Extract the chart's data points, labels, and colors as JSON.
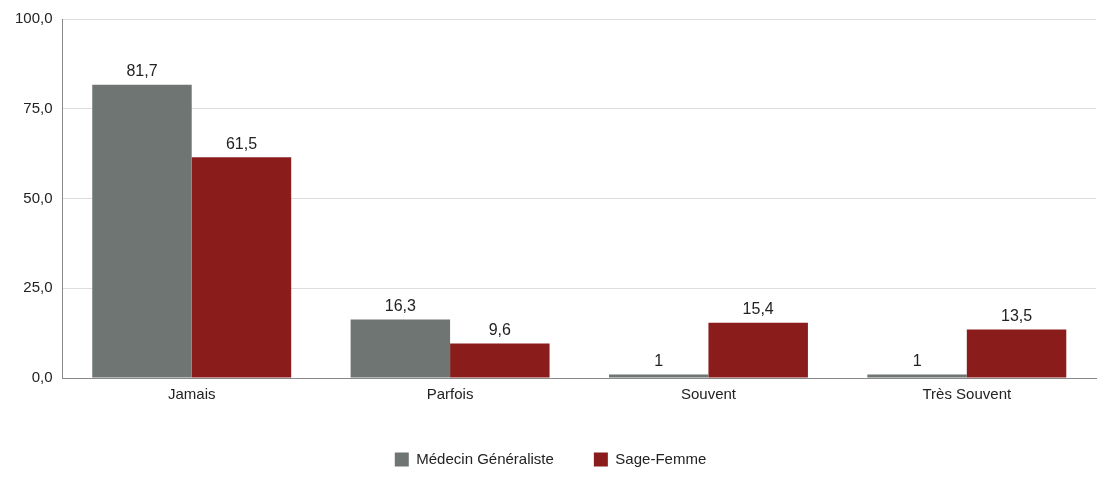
{
  "chart_data": {
    "type": "bar",
    "categories": [
      "Jamais",
      "Parfois",
      "Souvent",
      "Très Souvent"
    ],
    "series": [
      {
        "name": "Médecin Généraliste",
        "color": "#6f7572",
        "values": [
          81.7,
          16.3,
          1,
          1
        ],
        "value_labels": [
          "81,7",
          "16,3",
          "1",
          "1"
        ]
      },
      {
        "name": "Sage-Femme",
        "color": "#8b1c1c",
        "values": [
          61.5,
          9.6,
          15.4,
          13.5
        ],
        "value_labels": [
          "61,5",
          "9,6",
          "15,4",
          "13,5"
        ]
      }
    ],
    "ylim": [
      0,
      100
    ],
    "yticks": [
      {
        "value": 0,
        "label": "0,0"
      },
      {
        "value": 25,
        "label": "25,0"
      },
      {
        "value": 50,
        "label": "50,0"
      },
      {
        "value": 75,
        "label": "75,0"
      },
      {
        "value": 100,
        "label": "100,0"
      }
    ],
    "grid": "y",
    "legend": "bottom"
  }
}
